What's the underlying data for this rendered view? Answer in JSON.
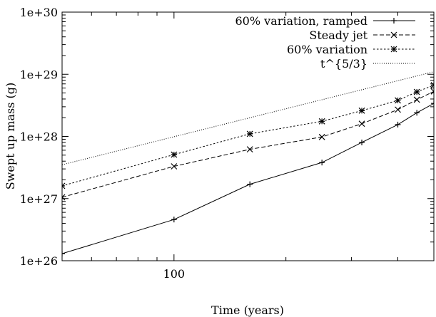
{
  "chart_data": {
    "type": "line",
    "xlabel": "Time (years)",
    "ylabel": "Swept up mass (g)",
    "xscale": "log",
    "yscale": "log",
    "xlim": [
      50,
      500
    ],
    "ylim": [
      1e+26,
      1e+30
    ],
    "x_ticks": [
      {
        "value": 100,
        "label": "100"
      }
    ],
    "x_minor_ticks": [
      50,
      60,
      70,
      80,
      90,
      200,
      300,
      400,
      500
    ],
    "y_ticks": [
      {
        "value": 1e+26,
        "label": "1e+26"
      },
      {
        "value": 1e+27,
        "label": "1e+27"
      },
      {
        "value": 1e+28,
        "label": "1e+28"
      },
      {
        "value": 1e+29,
        "label": "1e+29"
      },
      {
        "value": 1e+30,
        "label": "1e+30"
      }
    ],
    "grid": false,
    "legend_position": "top-right",
    "series": [
      {
        "name": "60% variation, ramped",
        "marker": "plus",
        "dash": "solid",
        "color": "#000000",
        "points": [
          [
            50,
            1.3e+26
          ],
          [
            100,
            4.6e+26
          ],
          [
            160,
            1.7e+27
          ],
          [
            250,
            3.8e+27
          ],
          [
            320,
            8e+27
          ],
          [
            400,
            1.55e+28
          ],
          [
            450,
            2.4e+28
          ],
          [
            500,
            3.4e+28
          ]
        ]
      },
      {
        "name": "Steady jet",
        "marker": "x",
        "dash": "dashed",
        "color": "#000000",
        "points": [
          [
            50,
            1.05e+27
          ],
          [
            100,
            3.3e+27
          ],
          [
            160,
            6.2e+27
          ],
          [
            250,
            9.8e+27
          ],
          [
            320,
            1.6e+28
          ],
          [
            400,
            2.7e+28
          ],
          [
            450,
            3.9e+28
          ],
          [
            500,
            5.3e+28
          ]
        ]
      },
      {
        "name": "60% variation",
        "marker": "star",
        "dash": "dotted",
        "color": "#000000",
        "points": [
          [
            50,
            1.6e+27
          ],
          [
            100,
            5.1e+27
          ],
          [
            160,
            1.1e+28
          ],
          [
            250,
            1.75e+28
          ],
          [
            320,
            2.6e+28
          ],
          [
            400,
            3.8e+28
          ],
          [
            450,
            5.2e+28
          ],
          [
            500,
            6.7e+28
          ]
        ]
      },
      {
        "name": "t^{5/3}",
        "marker": "none",
        "dash": "fine-dotted",
        "color": "#000000",
        "points": [
          [
            50,
            3.5e+27
          ],
          [
            500,
            1.1e+29
          ]
        ]
      }
    ]
  }
}
